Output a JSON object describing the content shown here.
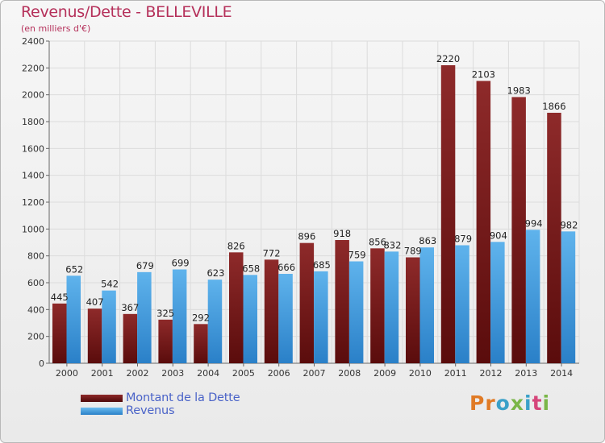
{
  "header": {
    "title": "Revenus/Dette - BELLEVILLE",
    "subtitle": "(en milliers d'€)"
  },
  "legend": {
    "items": [
      {
        "label": "Montant de la Dette",
        "color": "#7a1c1c"
      },
      {
        "label": "Revenus",
        "color": "#3b98dc"
      }
    ]
  },
  "logo": {
    "text": "Proxiti",
    "letter_colors": [
      "#e07a25",
      "#e07a25",
      "#3aa0c8",
      "#7ab648",
      "#3aa0c8",
      "#d6457a",
      "#7ab648"
    ]
  },
  "chart_data": {
    "type": "bar",
    "categories": [
      "2000",
      "2001",
      "2002",
      "2003",
      "2004",
      "2005",
      "2006",
      "2007",
      "2008",
      "2009",
      "2010",
      "2011",
      "2012",
      "2013",
      "2014"
    ],
    "series": [
      {
        "name": "Montant de la Dette",
        "values": [
          445,
          407,
          367,
          325,
          292,
          826,
          772,
          896,
          918,
          856,
          789,
          2220,
          2103,
          1983,
          1866
        ],
        "color": "#7a1c1c"
      },
      {
        "name": "Revenus",
        "values": [
          652,
          542,
          679,
          699,
          623,
          658,
          666,
          685,
          759,
          832,
          863,
          879,
          904,
          994,
          982
        ],
        "color": "#3b98dc"
      }
    ],
    "ylim": [
      0,
      2400
    ],
    "yticks": [
      0,
      200,
      400,
      600,
      800,
      1000,
      1200,
      1400,
      1600,
      1800,
      2000,
      2200,
      2400
    ],
    "grid": true,
    "legend_position": "bottom-left"
  }
}
